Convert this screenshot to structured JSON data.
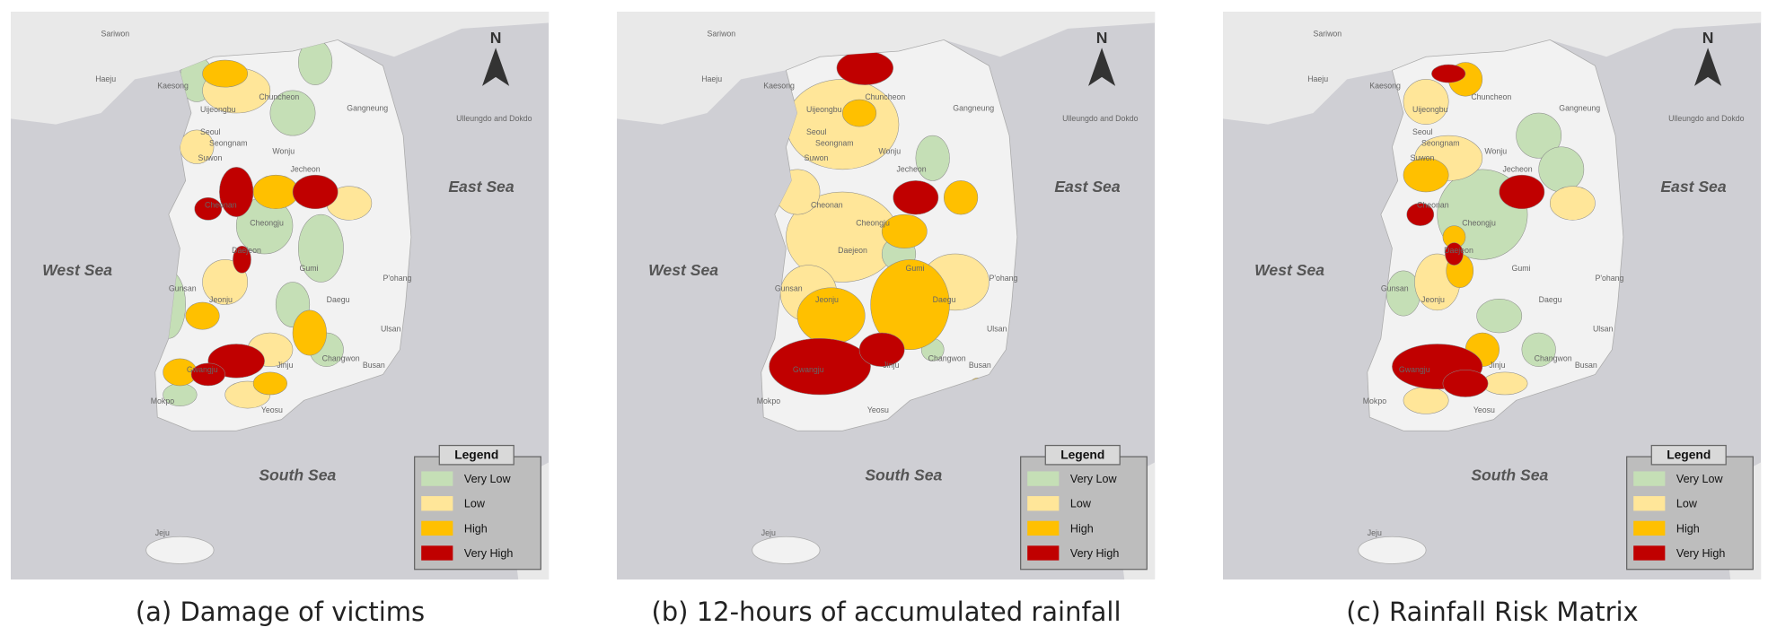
{
  "panels": [
    {
      "caption": "(a) Damage of victims"
    },
    {
      "caption": "(b) 12-hours of accumulated rainfall"
    },
    {
      "caption": "(c) Rainfall Risk Matrix"
    }
  ],
  "map": {
    "north": "N",
    "seas": {
      "east": "East Sea",
      "west": "West Sea",
      "south": "South Sea"
    },
    "places": [
      "Sariwon",
      "Haeju",
      "Kaesong",
      "Uijeongbu",
      "Chuncheon",
      "Gangneung",
      "Seoul",
      "Seongnam",
      "Suwon",
      "Wonju",
      "Jecheon",
      "Cheonan",
      "Cheongju",
      "Daejeon",
      "Gumi",
      "P'ohang",
      "Gunsan",
      "Jeonju",
      "Daegu",
      "Ulsan",
      "Gwangju",
      "Jinju",
      "Changwon",
      "Busan",
      "Mokpo",
      "Yeosu",
      "Jeju",
      "Ulleungdo and Dokdo"
    ]
  },
  "legend": {
    "title": "Legend",
    "levels": [
      {
        "label": "Very Low",
        "color": "#c5dfb6"
      },
      {
        "label": "Low",
        "color": "#ffe699"
      },
      {
        "label": "High",
        "color": "#ffc000"
      },
      {
        "label": "Very High",
        "color": "#c00000"
      }
    ]
  }
}
